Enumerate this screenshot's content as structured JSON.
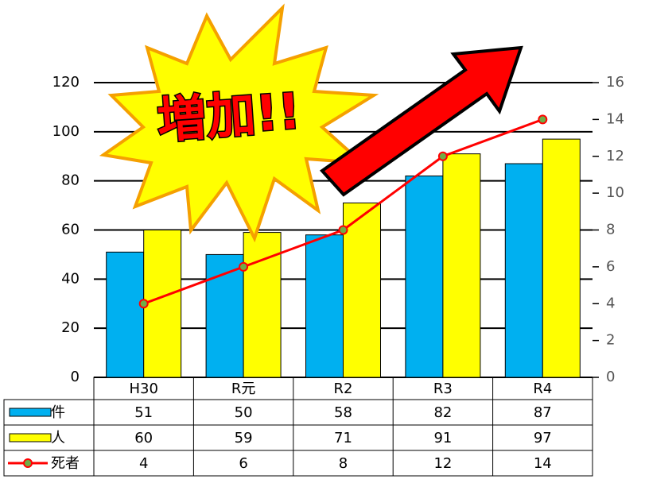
{
  "chart_data": {
    "type": "bar",
    "annotation": "増加!!",
    "categories": [
      "H30",
      "R元",
      "R2",
      "R3",
      "R4"
    ],
    "series": [
      {
        "name": "件",
        "color": "#00b0f0",
        "values": [
          51,
          50,
          58,
          82,
          87
        ]
      },
      {
        "name": "人",
        "color": "#ffff00",
        "values": [
          60,
          59,
          71,
          91,
          97
        ]
      },
      {
        "name": "死者",
        "color": "#ff0000",
        "values": [
          4,
          6,
          8,
          12,
          14
        ],
        "axis": "y2",
        "type": "line"
      }
    ],
    "ylim": [
      0,
      120
    ],
    "yticks": [
      0,
      20,
      40,
      60,
      80,
      100,
      120
    ],
    "y2lim": [
      0,
      16
    ],
    "y2ticks": [
      0,
      2,
      4,
      6,
      8,
      10,
      12,
      14,
      16
    ],
    "grid": true
  }
}
